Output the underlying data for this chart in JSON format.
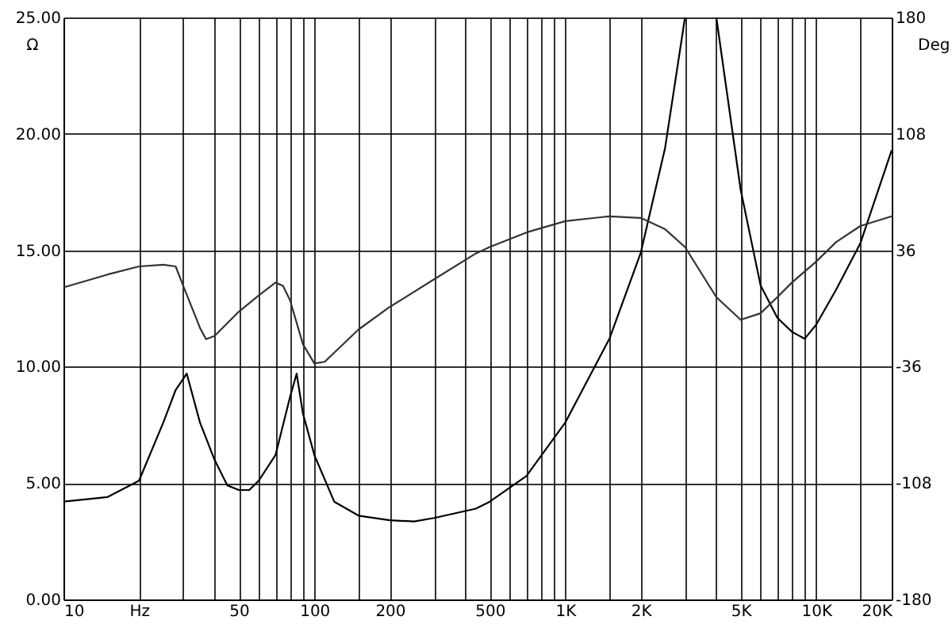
{
  "chart_data": {
    "type": "line",
    "ylabel": "Ω",
    "y2label": "Deg",
    "xlim": [
      10,
      20000
    ],
    "log": "x",
    "grid": true,
    "marker": "none",
    "line_style": "solid",
    "xticks": [
      10,
      {
        "value": 20,
        "label": "Hz"
      },
      {
        "value": 30,
        "label": null
      },
      {
        "value": 40,
        "label": null
      },
      50,
      {
        "value": 60,
        "label": null
      },
      {
        "value": 70,
        "label": null
      },
      {
        "value": 80,
        "label": null
      },
      {
        "value": 90,
        "label": null
      },
      100,
      {
        "value": 150,
        "label": null
      },
      200,
      {
        "value": 300,
        "label": null
      },
      {
        "value": 400,
        "label": null
      },
      500,
      {
        "value": 600,
        "label": null
      },
      {
        "value": 700,
        "label": null
      },
      {
        "value": 800,
        "label": null
      },
      {
        "value": 900,
        "label": null
      },
      {
        "value": 1000,
        "label": "1K"
      },
      {
        "value": 1500,
        "label": null
      },
      {
        "value": 2000,
        "label": "2K"
      },
      {
        "value": 3000,
        "label": null
      },
      {
        "value": 4000,
        "label": null
      },
      {
        "value": 5000,
        "label": "5K"
      },
      {
        "value": 6000,
        "label": null
      },
      {
        "value": 7000,
        "label": null
      },
      {
        "value": 8000,
        "label": null
      },
      {
        "value": 9000,
        "label": null
      },
      {
        "value": 10000,
        "label": "10K"
      },
      {
        "value": 15000,
        "label": null
      },
      {
        "value": 20000,
        "label": "20K"
      }
    ],
    "ylim": [
      0,
      25
    ],
    "yticks": [
      {
        "value": 0,
        "label": "0.00"
      },
      {
        "value": 5,
        "label": "5.00"
      },
      {
        "value": 10,
        "label": "10.00"
      },
      {
        "value": 15,
        "label": "15.00"
      },
      {
        "value": 20,
        "label": "20.00"
      },
      {
        "value": 25,
        "label": "25.00"
      }
    ],
    "y2lim": [
      -180,
      180
    ],
    "y2ticks": [
      -180,
      -108,
      -36,
      36,
      108,
      180
    ],
    "series": [
      {
        "color": "#000000",
        "x": [
          10,
          15,
          20,
          25,
          28,
          31,
          35,
          40,
          45,
          50,
          55,
          60,
          70,
          80,
          85,
          90,
          100,
          120,
          150,
          200,
          250,
          300,
          440,
          500,
          700,
          1000,
          1500,
          2000,
          2500,
          3000,
          3500,
          4000,
          5000,
          6000,
          7000,
          8000,
          9000,
          10000,
          12000,
          15000,
          20000
        ],
        "values": [
          4.2,
          4.4,
          5.1,
          7.6,
          9.0,
          9.7,
          7.6,
          6.0,
          4.9,
          4.7,
          4.7,
          5.1,
          6.2,
          8.7,
          9.7,
          8.0,
          6.2,
          4.2,
          3.6,
          3.4,
          3.35,
          3.5,
          3.9,
          4.2,
          5.3,
          7.6,
          11.2,
          14.9,
          19.4,
          25,
          null,
          25,
          17.6,
          13.5,
          12.1,
          11.5,
          11.2,
          11.8,
          13.3,
          15.3,
          19.3
        ]
      },
      {
        "color": "#333333",
        "axis": "y2",
        "x": [
          10,
          15,
          20,
          25,
          28,
          30,
          35,
          37,
          40,
          50,
          60,
          70,
          75,
          80,
          90,
          100,
          110,
          150,
          200,
          300,
          440,
          500,
          700,
          1000,
          1500,
          2000,
          2500,
          3000,
          4000,
          5000,
          6000,
          7000,
          8000,
          10000,
          12000,
          15000,
          20000
        ],
        "values": [
          13,
          21,
          26,
          27,
          26,
          14,
          -12,
          -19,
          -17,
          -2,
          8,
          16,
          14,
          5,
          -22,
          -34,
          -33,
          -13,
          1,
          18,
          34,
          38,
          47,
          54,
          57,
          56,
          49,
          38,
          7,
          -7,
          -3,
          7,
          16,
          29,
          41,
          51,
          57
        ]
      }
    ]
  }
}
